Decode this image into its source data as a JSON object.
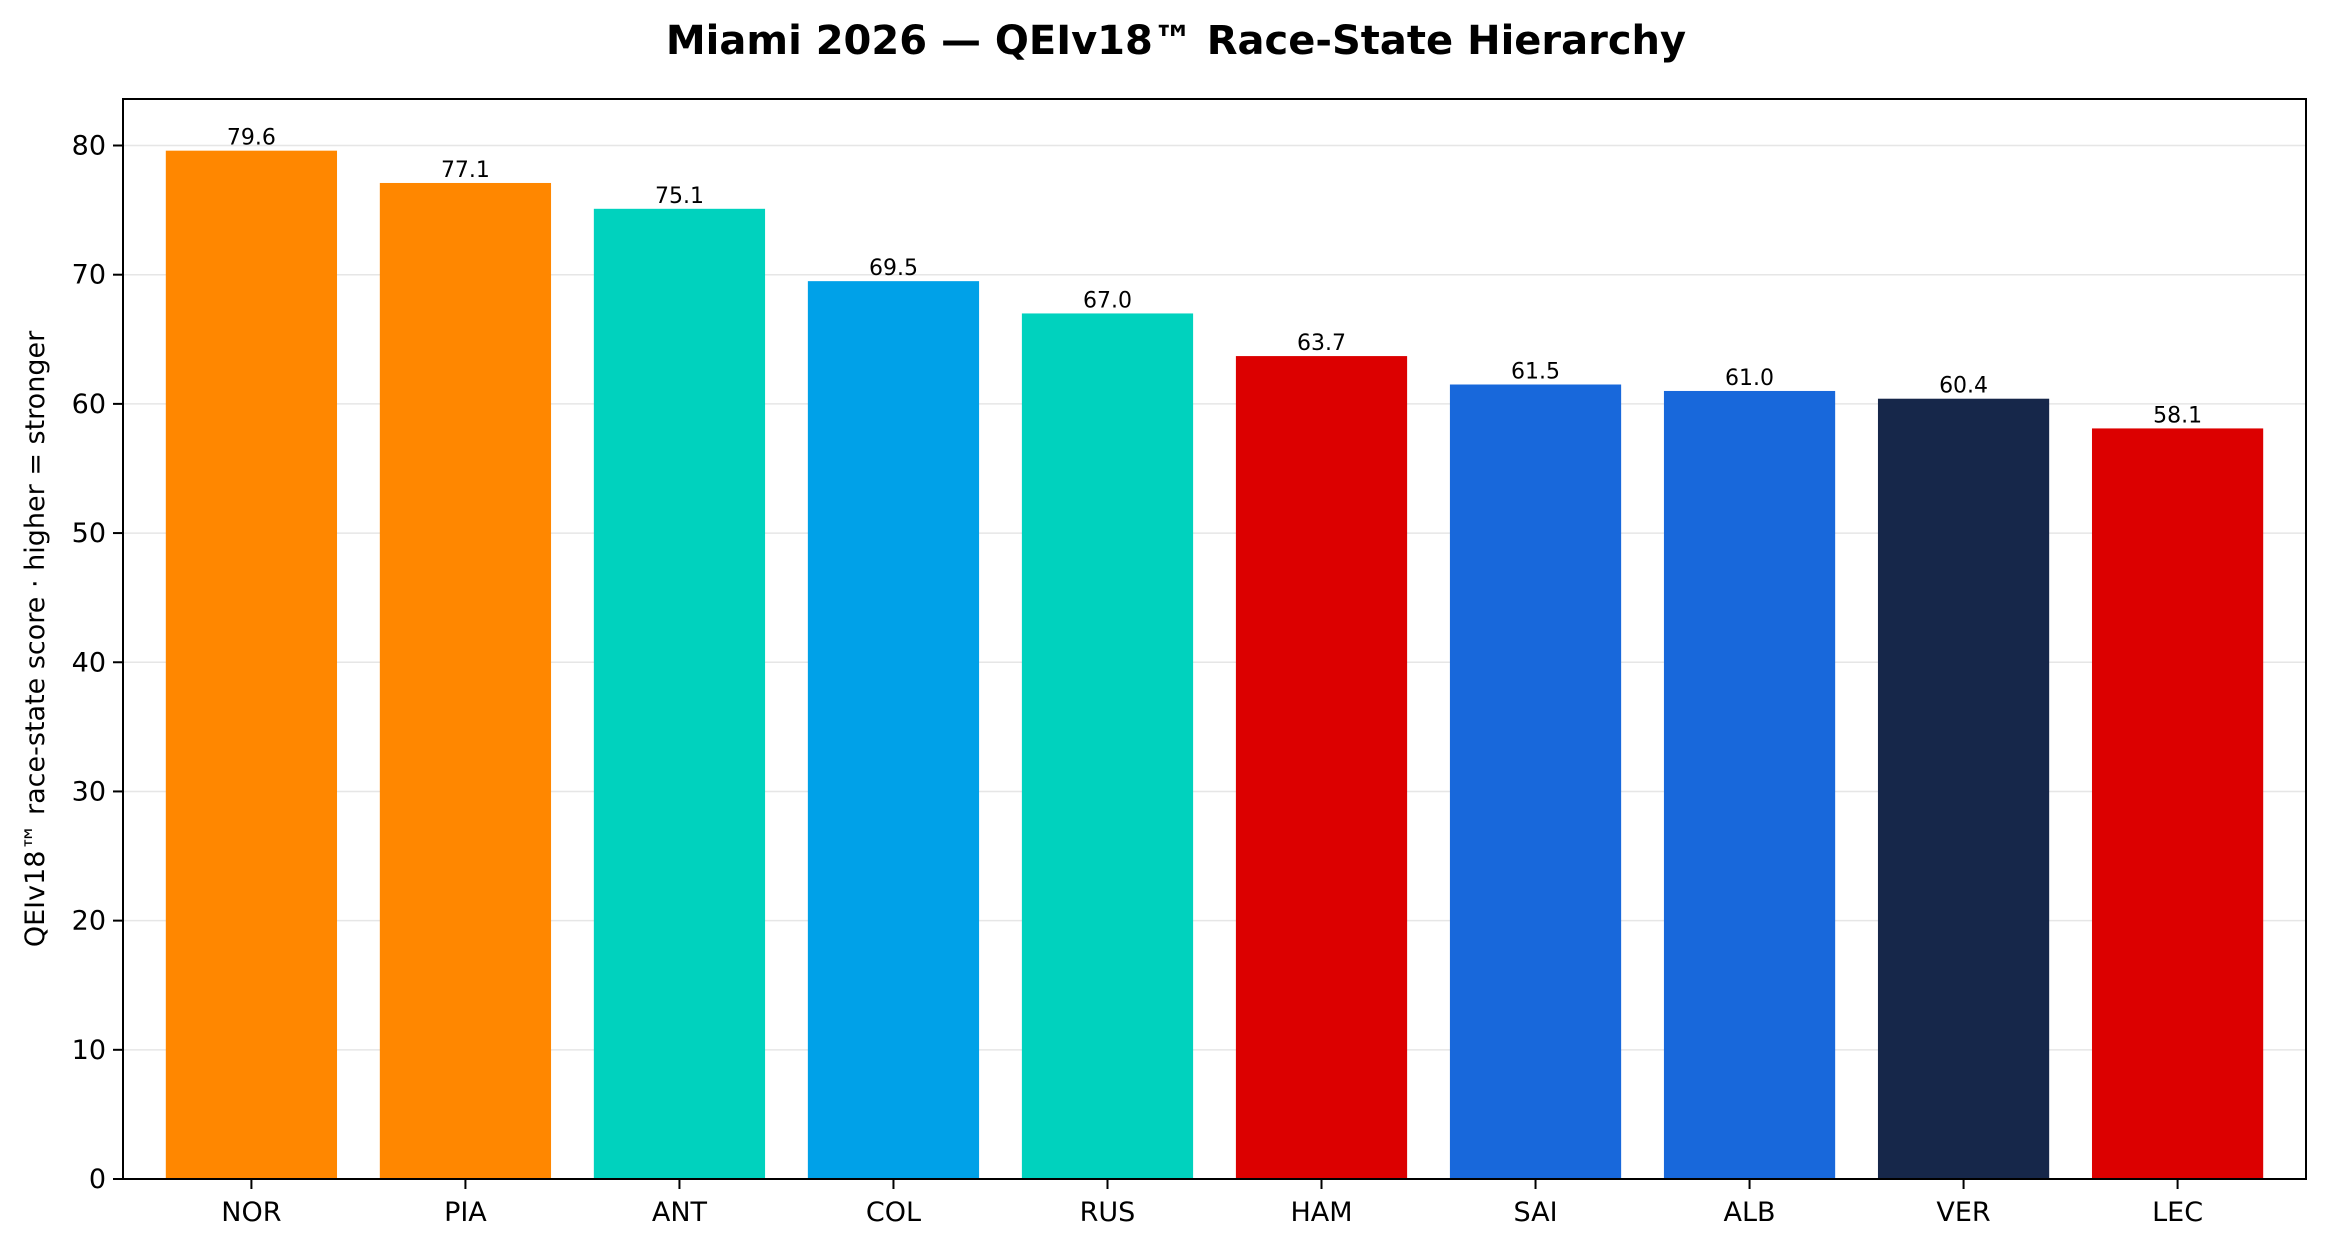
{
  "chart_data": {
    "type": "bar",
    "title": "Miami 2026 — QEIv18™ Race-State Hierarchy",
    "xlabel": "",
    "ylabel": "QEIv18™ race-state score · higher = stronger",
    "categories": [
      "NOR",
      "PIA",
      "ANT",
      "COL",
      "RUS",
      "HAM",
      "SAI",
      "ALB",
      "VER",
      "LEC"
    ],
    "values": [
      79.6,
      77.1,
      75.1,
      69.5,
      67.0,
      63.7,
      61.5,
      61.0,
      60.4,
      58.1
    ],
    "value_labels": [
      "79.6",
      "77.1",
      "75.1",
      "69.5",
      "67.0",
      "63.7",
      "61.5",
      "61.0",
      "60.4",
      "58.1"
    ],
    "colors": [
      "#FF8700",
      "#FF8700",
      "#00D2BE",
      "#00A1E8",
      "#00D2BE",
      "#DC0000",
      "#1868DB",
      "#1868DB",
      "#16274A",
      "#DC0000"
    ],
    "ylim": [
      0,
      83.6
    ],
    "yticks": [
      0,
      10,
      20,
      30,
      40,
      50,
      60,
      70,
      80
    ],
    "ytick_labels": [
      "0",
      "10",
      "20",
      "30",
      "40",
      "50",
      "60",
      "70",
      "80"
    ],
    "grid": "horizontal",
    "legend": "none"
  }
}
